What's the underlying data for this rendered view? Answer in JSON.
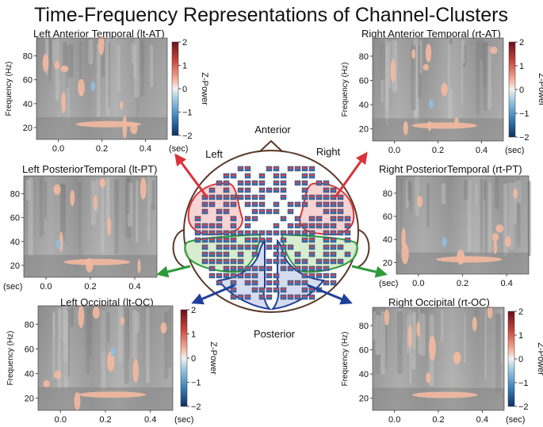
{
  "figure_title": "Time-Frequency Representations of Channel-Clusters",
  "colorbar_label": "Z-Power",
  "freq_label": "Frequency (Hz)",
  "time_unit": "(sec)",
  "colors": {
    "hot": "#f3b9a0",
    "cold": "#8fbfe0",
    "bg": "#9a9a9a",
    "left_temporal": "#d9343a",
    "posterior_temporal": "#2f9a3a",
    "occipital": "#1f3f9a",
    "head": "#5a3a2a"
  },
  "head": {
    "anterior": "Anterior",
    "posterior": "Posterior",
    "left": "Left",
    "right": "Right"
  },
  "panels": [
    {
      "id": "lt-at",
      "title": "Left Anterior Temporal (lt-AT)",
      "yticks": [
        "20",
        "40",
        "60",
        "80"
      ],
      "xticks": [
        "0.0",
        "0.2",
        "0.4"
      ],
      "yaxis": true,
      "colorbar": true,
      "cbticks": [
        "2",
        "1",
        "0",
        "−1",
        "−2"
      ]
    },
    {
      "id": "rt-at",
      "title": "Right Anterior Temporal (rt-AT)",
      "yticks": [
        "20",
        "40",
        "60",
        "80"
      ],
      "xticks": [
        "0.0",
        "0.2",
        "0.4"
      ],
      "yaxis": true,
      "colorbar": true,
      "cbticks": [
        "2",
        "1",
        "0",
        "−1",
        "−2"
      ]
    },
    {
      "id": "lt-pt",
      "title": "Left PosteriorTemporal (lt-PT)",
      "yticks": [
        "20",
        "40",
        "60",
        "80"
      ],
      "xticks": [
        "0.0",
        "0.2",
        "0.4"
      ],
      "yaxis": false,
      "colorbar": false
    },
    {
      "id": "rt-pt",
      "title": "Right PosteriorTemporal (rt-PT)",
      "yticks": [
        "20",
        "40",
        "60",
        "80"
      ],
      "xticks": [
        "0.0",
        "0.2",
        "0.4"
      ],
      "yaxis": false,
      "colorbar": false
    },
    {
      "id": "lt-oc",
      "title": "Left Occipital (lt-OC)",
      "yticks": [
        "20",
        "40",
        "60",
        "80"
      ],
      "xticks": [
        "0.0",
        "0.2",
        "0.4"
      ],
      "yaxis": true,
      "colorbar": true,
      "cbticks": [
        "2",
        "1",
        "0",
        "−1",
        "−2"
      ]
    },
    {
      "id": "rt-oc",
      "title": "Right Occipital (rt-OC)",
      "yticks": [
        "20",
        "40",
        "60",
        "80"
      ],
      "xticks": [
        "0.0",
        "0.2",
        "0.4"
      ],
      "yaxis": true,
      "colorbar": true,
      "cbticks": [
        "2",
        "1",
        "0",
        "−1",
        "−2"
      ]
    }
  ]
}
